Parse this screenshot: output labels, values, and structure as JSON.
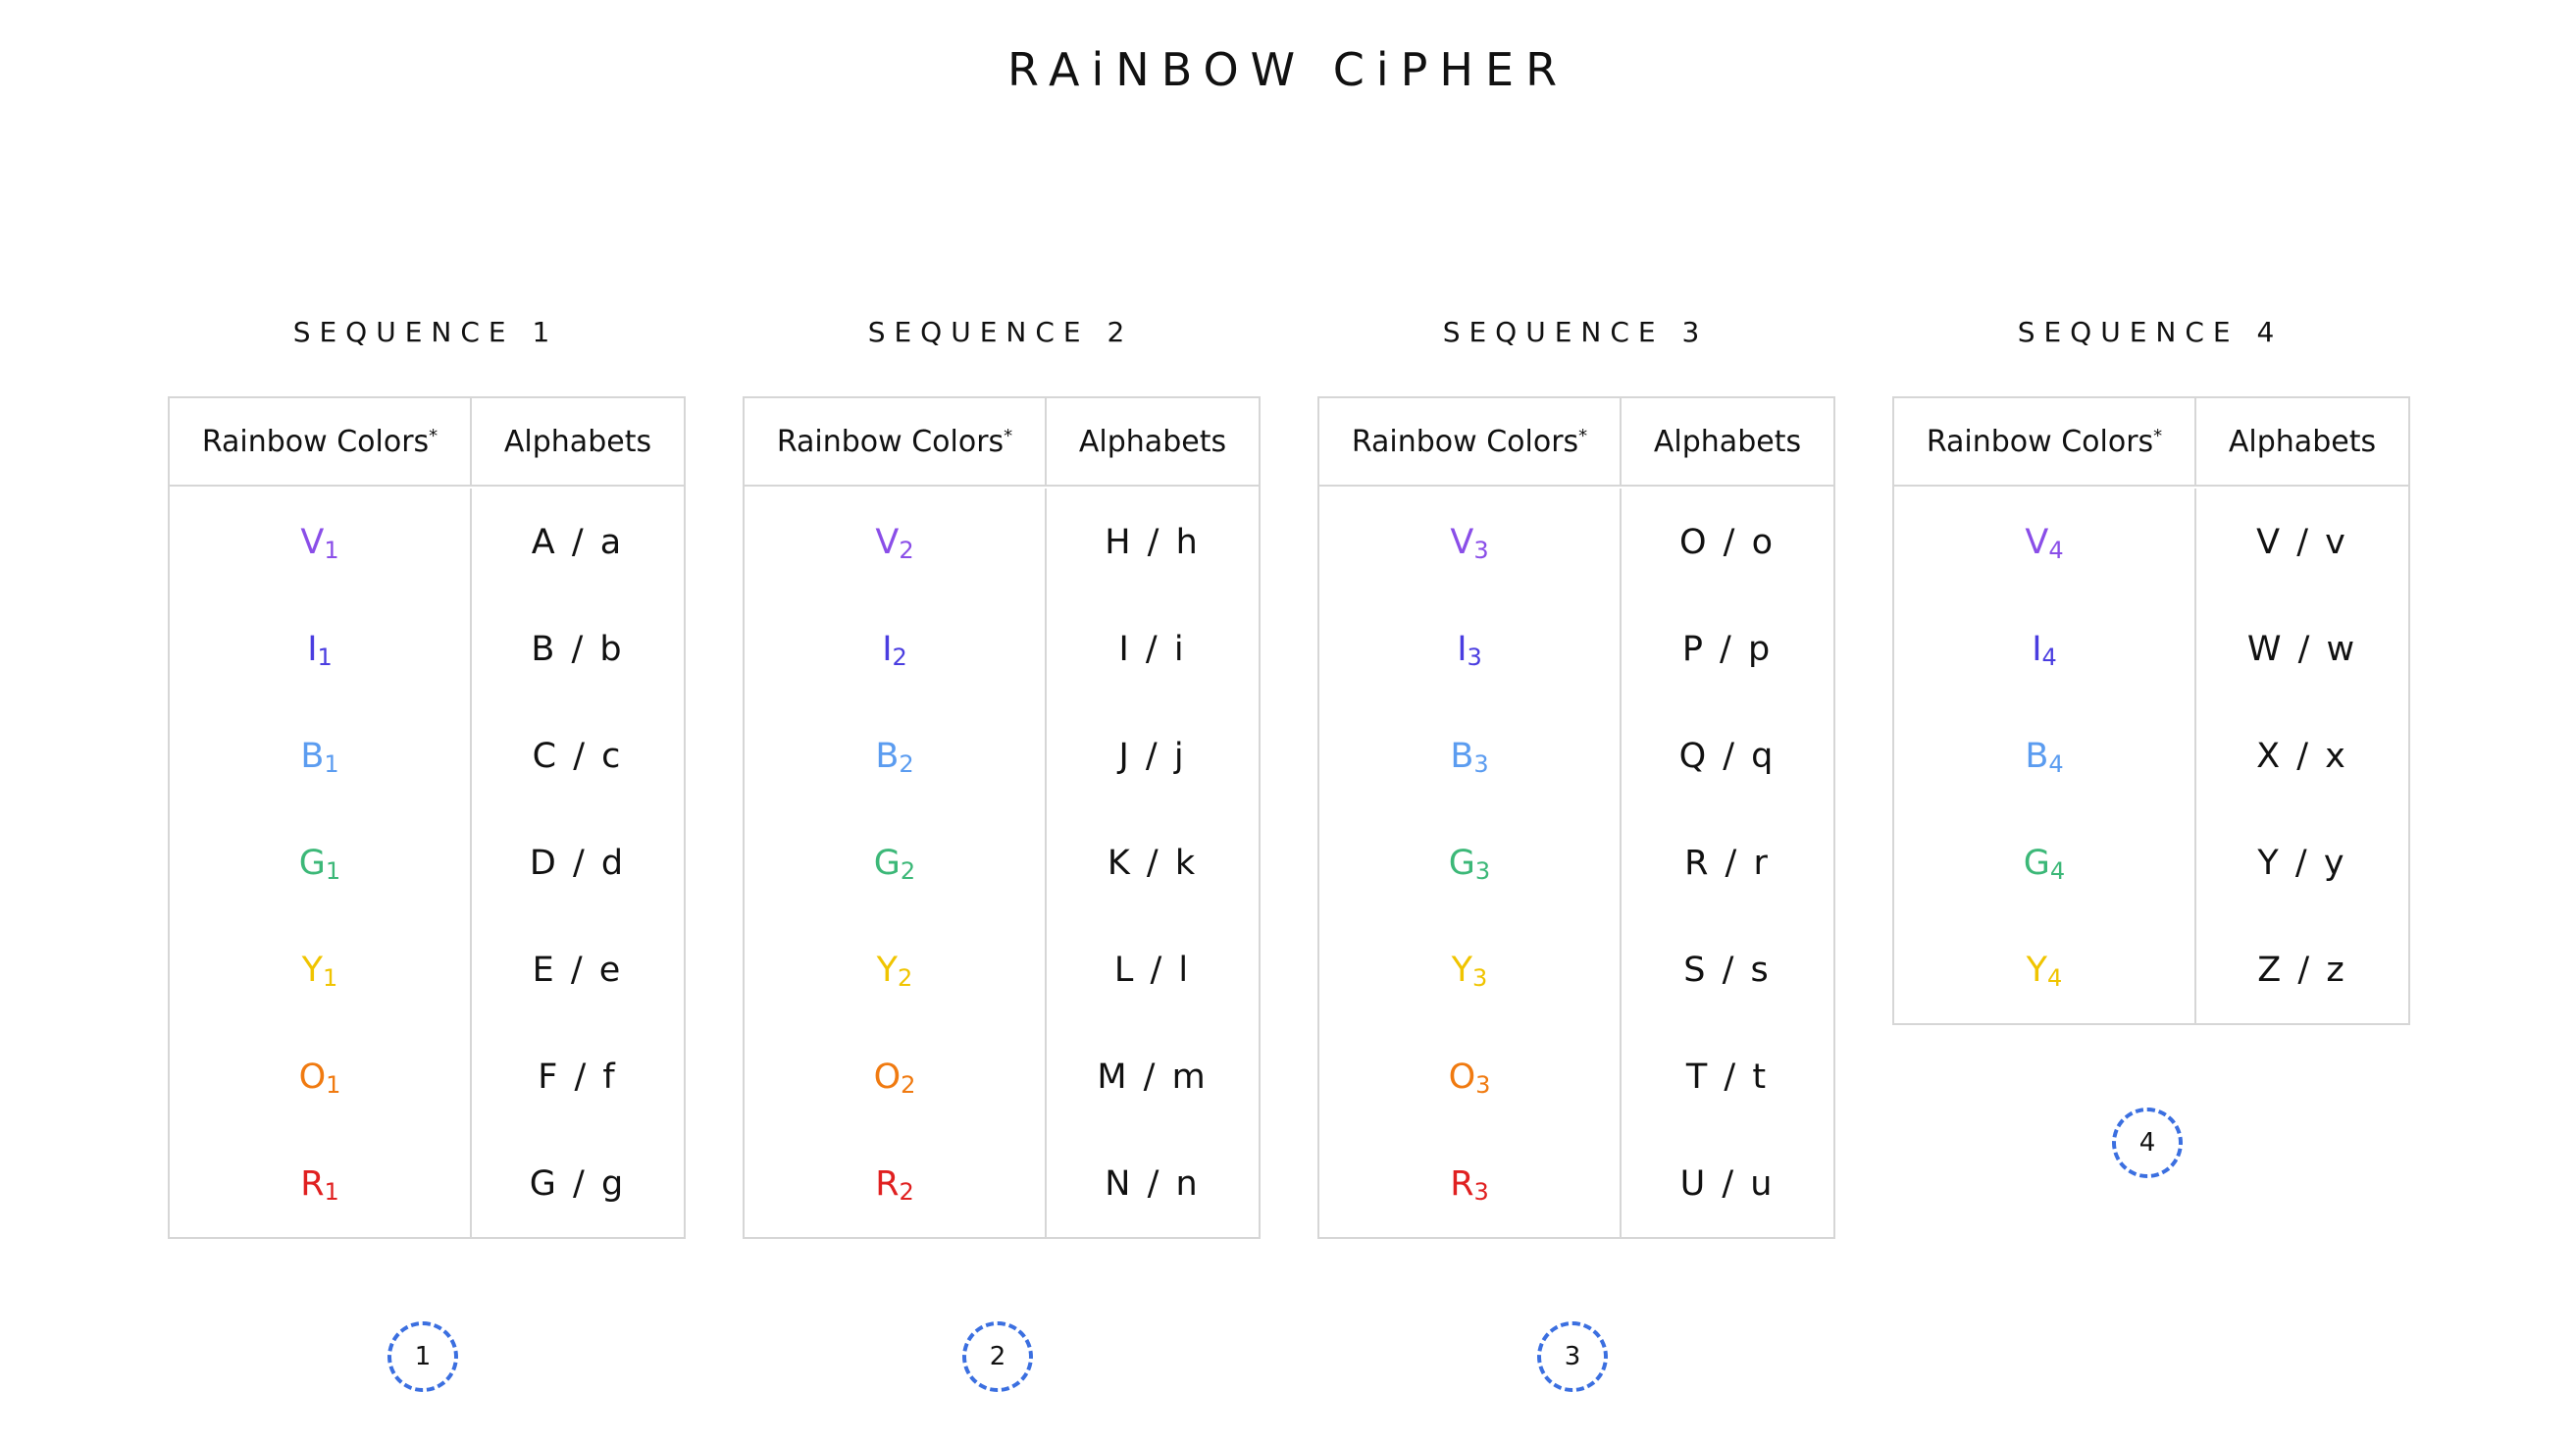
{
  "title": "RAiNBOW CiPHER",
  "sequences": [
    {
      "title": "SEQUENCE 1",
      "headers": [
        "Rainbow Colors",
        "Alphabets"
      ],
      "header_mark": "*",
      "badge": "1",
      "rows": [
        {
          "letter": "V",
          "sub": "1",
          "alphabet": "A / a",
          "color": "#8a4ee8"
        },
        {
          "letter": "I",
          "sub": "1",
          "alphabet": "B / b",
          "color": "#4a3de0"
        },
        {
          "letter": "B",
          "sub": "1",
          "alphabet": "C / c",
          "color": "#5b9cf0"
        },
        {
          "letter": "G",
          "sub": "1",
          "alphabet": "D / d",
          "color": "#3cb878"
        },
        {
          "letter": "Y",
          "sub": "1",
          "alphabet": "E / e",
          "color": "#f0c400"
        },
        {
          "letter": "O",
          "sub": "1",
          "alphabet": "F / f",
          "color": "#f07a10"
        },
        {
          "letter": "R",
          "sub": "1",
          "alphabet": "G / g",
          "color": "#e02020"
        }
      ]
    },
    {
      "title": "SEQUENCE 2",
      "headers": [
        "Rainbow Colors",
        "Alphabets"
      ],
      "header_mark": "*",
      "badge": "2",
      "rows": [
        {
          "letter": "V",
          "sub": "2",
          "alphabet": "H / h",
          "color": "#8a4ee8"
        },
        {
          "letter": "I",
          "sub": "2",
          "alphabet": "I / i",
          "color": "#4a3de0"
        },
        {
          "letter": "B",
          "sub": "2",
          "alphabet": "J / j",
          "color": "#5b9cf0"
        },
        {
          "letter": "G",
          "sub": "2",
          "alphabet": "K / k",
          "color": "#3cb878"
        },
        {
          "letter": "Y",
          "sub": "2",
          "alphabet": "L / l",
          "color": "#f0c400"
        },
        {
          "letter": "O",
          "sub": "2",
          "alphabet": "M / m",
          "color": "#f07a10"
        },
        {
          "letter": "R",
          "sub": "2",
          "alphabet": "N / n",
          "color": "#e02020"
        }
      ]
    },
    {
      "title": "SEQUENCE 3",
      "headers": [
        "Rainbow Colors",
        "Alphabets"
      ],
      "header_mark": "*",
      "badge": "3",
      "rows": [
        {
          "letter": "V",
          "sub": "3",
          "alphabet": "O / o",
          "color": "#8a4ee8"
        },
        {
          "letter": "I",
          "sub": "3",
          "alphabet": "P / p",
          "color": "#4a3de0"
        },
        {
          "letter": "B",
          "sub": "3",
          "alphabet": "Q / q",
          "color": "#5b9cf0"
        },
        {
          "letter": "G",
          "sub": "3",
          "alphabet": "R / r",
          "color": "#3cb878"
        },
        {
          "letter": "Y",
          "sub": "3",
          "alphabet": "S / s",
          "color": "#f0c400"
        },
        {
          "letter": "O",
          "sub": "3",
          "alphabet": "T / t",
          "color": "#f07a10"
        },
        {
          "letter": "R",
          "sub": "3",
          "alphabet": "U / u",
          "color": "#e02020"
        }
      ]
    },
    {
      "title": "SEQUENCE 4",
      "headers": [
        "Rainbow Colors",
        "Alphabets"
      ],
      "header_mark": "*",
      "badge": "4",
      "rows": [
        {
          "letter": "V",
          "sub": "4",
          "alphabet": "V / v",
          "color": "#8a4ee8"
        },
        {
          "letter": "I",
          "sub": "4",
          "alphabet": "W / w",
          "color": "#4a3de0"
        },
        {
          "letter": "B",
          "sub": "4",
          "alphabet": "X / x",
          "color": "#5b9cf0"
        },
        {
          "letter": "G",
          "sub": "4",
          "alphabet": "Y / y",
          "color": "#3cb878"
        },
        {
          "letter": "Y",
          "sub": "4",
          "alphabet": "Z / z",
          "color": "#f0c400"
        }
      ]
    }
  ]
}
